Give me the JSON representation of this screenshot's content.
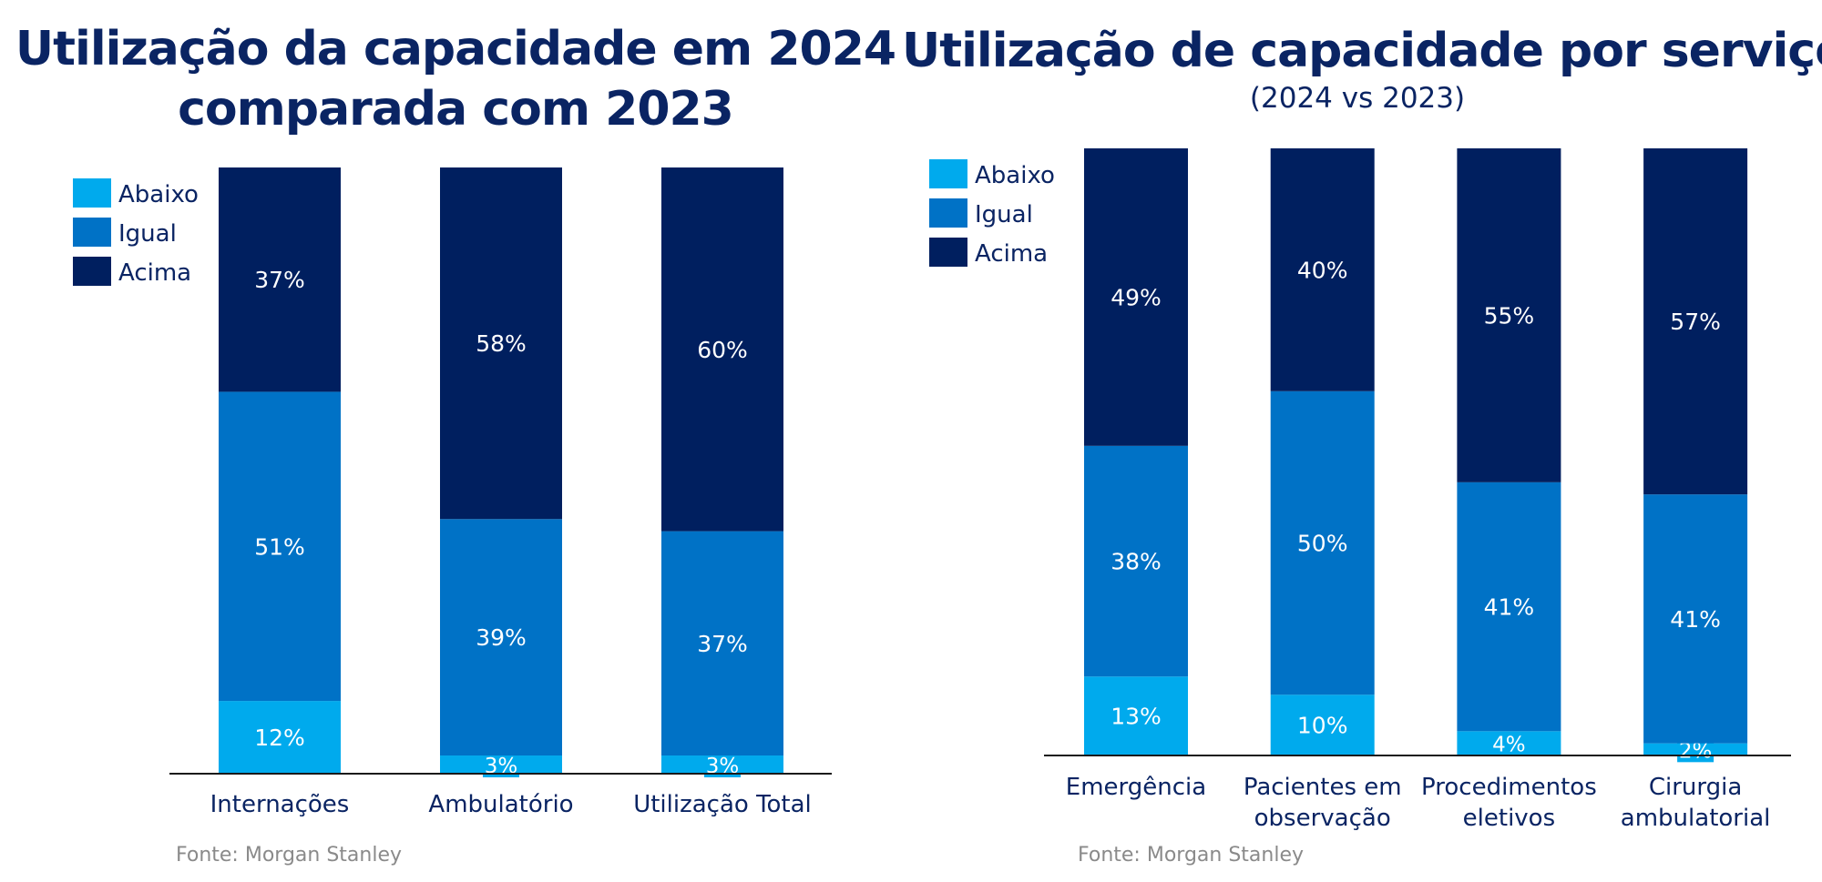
{
  "colors": {
    "abaixo": "#00aaed",
    "igual": "#0072c6",
    "acima": "#001f5f",
    "title": "#0a2463",
    "axis_text": "#0a2463",
    "segment_text": "#ffffff",
    "source_text": "#8a8a8a"
  },
  "left": {
    "title_line1": "Utilização da capacidade em 2024",
    "title_line2": "comparada com 2023",
    "source": "Fonte: Morgan Stanley"
  },
  "right": {
    "title": "Utilização de capacidade por serviço",
    "subtitle": "(2024 vs 2023)",
    "source": "Fonte: Morgan Stanley"
  },
  "chart_data": [
    {
      "type": "bar",
      "stacked": true,
      "title": "Utilização da capacidade em 2024 comparada com 2023",
      "categories": [
        [
          "Internações"
        ],
        [
          "Ambulatório"
        ],
        [
          "Utilização Total"
        ]
      ],
      "series": [
        {
          "name": "Abaixo",
          "color": "#00aaed",
          "values": [
            12,
            3,
            3
          ],
          "labels": [
            "12%",
            "3%",
            "3%"
          ]
        },
        {
          "name": "Igual",
          "color": "#0072c6",
          "values": [
            51,
            39,
            37
          ],
          "labels": [
            "51%",
            "39%",
            "37%"
          ]
        },
        {
          "name": "Acima",
          "color": "#001f5f",
          "values": [
            37,
            58,
            60
          ],
          "labels": [
            "37%",
            "58%",
            "60%"
          ]
        }
      ],
      "ylim": [
        0,
        100
      ],
      "grid": false,
      "legend": "top-left"
    },
    {
      "type": "bar",
      "stacked": true,
      "title": "Utilização de capacidade por serviço",
      "subtitle": "(2024 vs 2023)",
      "categories": [
        [
          "Emergência"
        ],
        [
          "Pacientes em",
          "observação"
        ],
        [
          "Procedimentos",
          "eletivos"
        ],
        [
          "Cirurgia",
          "ambulatorial"
        ]
      ],
      "series": [
        {
          "name": "Abaixo",
          "color": "#00aaed",
          "values": [
            13,
            10,
            4,
            2
          ],
          "labels": [
            "13%",
            "10%",
            "4%",
            "2%"
          ]
        },
        {
          "name": "Igual",
          "color": "#0072c6",
          "values": [
            38,
            50,
            41,
            41
          ],
          "labels": [
            "38%",
            "50%",
            "41%",
            "41%"
          ]
        },
        {
          "name": "Acima",
          "color": "#001f5f",
          "values": [
            49,
            40,
            55,
            57
          ],
          "labels": [
            "49%",
            "40%",
            "55%",
            "57%"
          ]
        }
      ],
      "ylim": [
        0,
        100
      ],
      "grid": false,
      "legend": "top-left"
    }
  ]
}
